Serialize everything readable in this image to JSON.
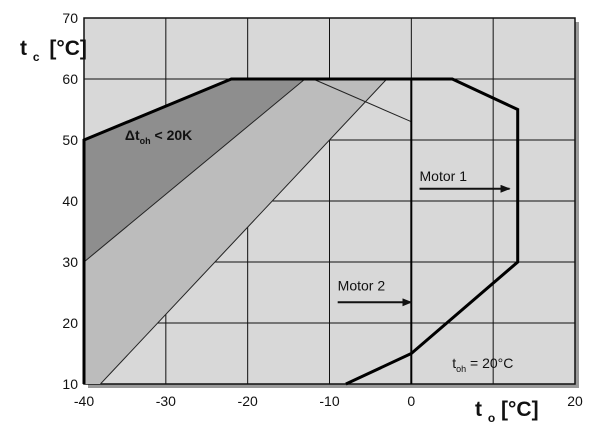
{
  "chart_data": {
    "type": "area",
    "xlabel": {
      "main": "t",
      "sub": "o",
      "unit": "[°C]"
    },
    "ylabel": {
      "main": "t",
      "sub": "c",
      "unit": "[°C]"
    },
    "xlim": [
      -40,
      20
    ],
    "ylim": [
      10,
      70
    ],
    "x_ticks": [
      -40,
      -30,
      -20,
      -10,
      0,
      20
    ],
    "y_ticks": [
      10,
      20,
      30,
      40,
      50,
      60,
      70
    ],
    "grid": true,
    "colors": {
      "plot_bg": "#d8d8d8",
      "frame_shadow": "#9a9a9a",
      "dark_band": "#8e8e8e",
      "mid_band": "#bcbcbc",
      "envelope_line": "#000000"
    },
    "series": [
      {
        "name": "Δtoh < 20K",
        "kind": "region",
        "points": [
          [
            -40,
            50
          ],
          [
            -22,
            60
          ],
          [
            -13,
            60
          ],
          [
            -40,
            30
          ]
        ]
      },
      {
        "kind": "region",
        "points": [
          [
            -40,
            30
          ],
          [
            -13,
            60
          ],
          [
            -3,
            60
          ],
          [
            -38,
            10
          ],
          [
            -40,
            10
          ]
        ]
      },
      {
        "name": "Motor 1",
        "kind": "envelope",
        "points": [
          [
            -40,
            10
          ],
          [
            -40,
            50
          ],
          [
            -22,
            60
          ],
          [
            5,
            60
          ],
          [
            13,
            55
          ],
          [
            13,
            30
          ],
          [
            0,
            15
          ],
          [
            -8,
            10
          ]
        ]
      },
      {
        "name": "Motor 2",
        "kind": "envelope",
        "points": [
          [
            -40,
            10
          ],
          [
            -40,
            50
          ],
          [
            -22,
            60
          ],
          [
            0,
            60
          ],
          [
            0,
            10
          ]
        ]
      }
    ],
    "guide_lines": [
      {
        "points": [
          [
            -12,
            60
          ],
          [
            0,
            53
          ]
        ]
      },
      {
        "points": [
          [
            -40,
            30
          ],
          [
            -13,
            60
          ]
        ]
      },
      {
        "points": [
          [
            -38,
            10
          ],
          [
            -3,
            60
          ]
        ]
      }
    ],
    "annotations": [
      {
        "id": "dtoh",
        "text_main": "Δt",
        "text_sub": "oh",
        "text_rest": " < 20K",
        "x": -35,
        "y": 50
      },
      {
        "id": "motor1",
        "text": "Motor 1",
        "x": 1,
        "y": 43.3
      },
      {
        "id": "motor2",
        "text": "Motor 2",
        "x": -9,
        "y": 25.3
      },
      {
        "id": "toh",
        "text_main": "t",
        "text_sub": "oh",
        "text_rest": " = 20°C",
        "x": 5,
        "y": 12.6
      }
    ],
    "arrows": [
      {
        "name": "motor1-arrow",
        "from": [
          1,
          42
        ],
        "to": [
          12,
          42
        ]
      },
      {
        "name": "motor2-arrow",
        "from": [
          -9,
          23.4
        ],
        "to": [
          0,
          23.4
        ]
      }
    ]
  }
}
